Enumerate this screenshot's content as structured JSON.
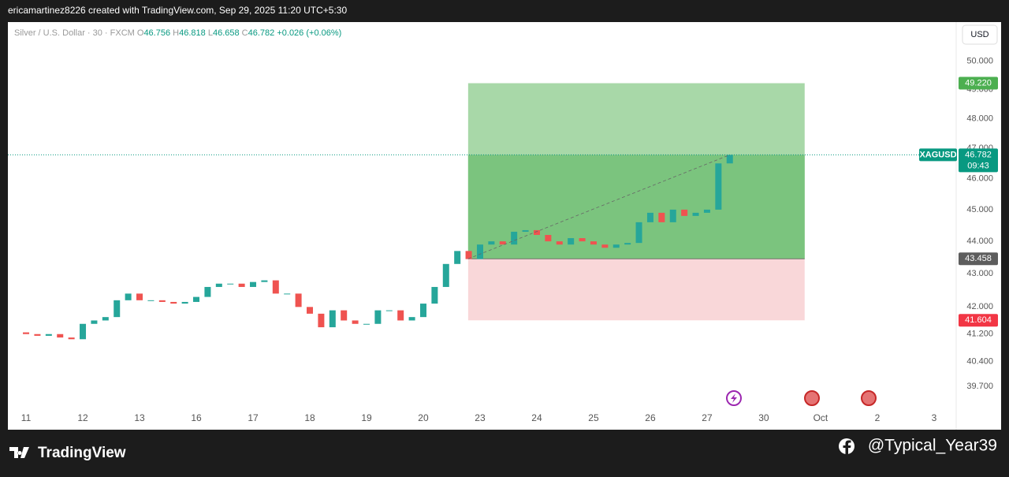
{
  "header": {
    "text": "ericamartinez8226 created with TradingView.com, Sep 29, 2025 11:20 UTC+5:30"
  },
  "footer": {
    "brand": "TradingView",
    "handle": "@Typical_Year39"
  },
  "chart_data": {
    "type": "candlestick",
    "legend": {
      "symbol": "Silver / U.S. Dollar · 30 · FXCM",
      "o_key": "O",
      "o": "46.756",
      "h_key": "H",
      "h": "46.818",
      "l_key": "L",
      "l": "46.658",
      "c_key": "C",
      "c": "46.782",
      "change": "+0.026 (+0.06%)"
    },
    "currency": "USD",
    "symbol_badge": "XAGUSD",
    "countdown": "09:43",
    "log_scale": true,
    "up_color": "#26a69a",
    "down_color": "#ef5350",
    "xlim": [
      -0.32,
      16.39
    ],
    "ylim": [
      38.5,
      51.4
    ],
    "xticks": [
      {
        "value": 0,
        "label": "11"
      },
      {
        "value": 1,
        "label": "12"
      },
      {
        "value": 2,
        "label": "13"
      },
      {
        "value": 3,
        "label": "16"
      },
      {
        "value": 4,
        "label": "17"
      },
      {
        "value": 5,
        "label": "18"
      },
      {
        "value": 6,
        "label": "19"
      },
      {
        "value": 7,
        "label": "20"
      },
      {
        "value": 8,
        "label": "23"
      },
      {
        "value": 9,
        "label": "24"
      },
      {
        "value": 10,
        "label": "25"
      },
      {
        "value": 11,
        "label": "26"
      },
      {
        "value": 12,
        "label": "27"
      },
      {
        "value": 13,
        "label": "30"
      },
      {
        "value": 14,
        "label": "Oct"
      },
      {
        "value": 15,
        "label": "2"
      },
      {
        "value": 16,
        "label": "3"
      }
    ],
    "yticks": [
      {
        "value": 50,
        "label": "50.000"
      },
      {
        "value": 49,
        "label": "49.000"
      },
      {
        "value": 48,
        "label": "48.000"
      },
      {
        "value": 47,
        "label": "47.000"
      },
      {
        "value": 46,
        "label": "46.000"
      },
      {
        "value": 45,
        "label": "45.000"
      },
      {
        "value": 44,
        "label": "44.000"
      },
      {
        "value": 43,
        "label": "43.000"
      },
      {
        "value": 42,
        "label": "42.000"
      },
      {
        "value": 41.2,
        "label": "41.200"
      },
      {
        "value": 40.4,
        "label": "40.400"
      },
      {
        "value": 39.7,
        "label": "39.700"
      }
    ],
    "x": [
      0,
      0.2,
      0.4,
      0.6,
      0.8,
      1,
      1.2,
      1.4,
      1.6,
      1.8,
      2,
      2.2,
      2.4,
      2.6,
      2.8,
      3,
      3.2,
      3.4,
      3.6,
      3.8,
      4,
      4.2,
      4.4,
      4.6,
      4.8,
      5,
      5.2,
      5.4,
      5.6,
      5.8,
      6,
      6.2,
      6.4,
      6.6,
      6.8,
      7,
      7.2,
      7.4,
      7.6,
      7.8,
      8,
      8.2,
      8.4,
      8.6,
      8.8,
      9,
      9.2,
      9.4,
      9.6,
      9.8,
      10,
      10.2,
      10.4,
      10.6,
      10.8,
      11,
      11.2,
      11.4,
      11.6,
      11.8,
      12,
      12.2,
      12.4
    ],
    "open": [
      41.25,
      41.2,
      41.15,
      41.2,
      41.1,
      41.05,
      41.5,
      41.6,
      41.7,
      42.2,
      42.4,
      42.2,
      42.2,
      42.15,
      42.1,
      42.15,
      42.3,
      42.6,
      42.7,
      42.7,
      42.6,
      42.75,
      42.8,
      42.4,
      42.4,
      42.0,
      41.8,
      41.4,
      41.9,
      41.6,
      41.5,
      41.5,
      41.9,
      41.9,
      41.6,
      41.7,
      42.1,
      42.6,
      43.3,
      43.7,
      43.45,
      43.9,
      44.0,
      43.9,
      44.3,
      44.35,
      44.2,
      44.0,
      43.9,
      44.1,
      44.0,
      43.9,
      43.8,
      43.9,
      43.95,
      44.6,
      44.9,
      44.6,
      45.0,
      44.8,
      44.9,
      45.0,
      46.5
    ],
    "close": [
      41.2,
      41.15,
      41.2,
      41.1,
      41.05,
      41.5,
      41.6,
      41.7,
      42.2,
      42.4,
      42.2,
      42.2,
      42.15,
      42.1,
      42.15,
      42.3,
      42.6,
      42.7,
      42.7,
      42.6,
      42.75,
      42.8,
      42.4,
      42.4,
      42.0,
      41.8,
      41.4,
      41.9,
      41.6,
      41.5,
      41.5,
      41.9,
      41.9,
      41.6,
      41.7,
      42.1,
      42.6,
      43.3,
      43.7,
      43.45,
      43.9,
      44.0,
      43.9,
      44.3,
      44.35,
      44.2,
      44.0,
      43.9,
      44.1,
      44.0,
      43.9,
      43.8,
      43.9,
      43.95,
      44.6,
      44.9,
      44.6,
      45.0,
      44.8,
      44.9,
      45.0,
      46.5,
      46.782
    ],
    "current_price": 46.782,
    "position": {
      "x_range": [
        7.79,
        13.72
      ],
      "target": {
        "value": 49.22,
        "label": "49.220"
      },
      "entry": 43.458,
      "stop": 41.604
    }
  }
}
